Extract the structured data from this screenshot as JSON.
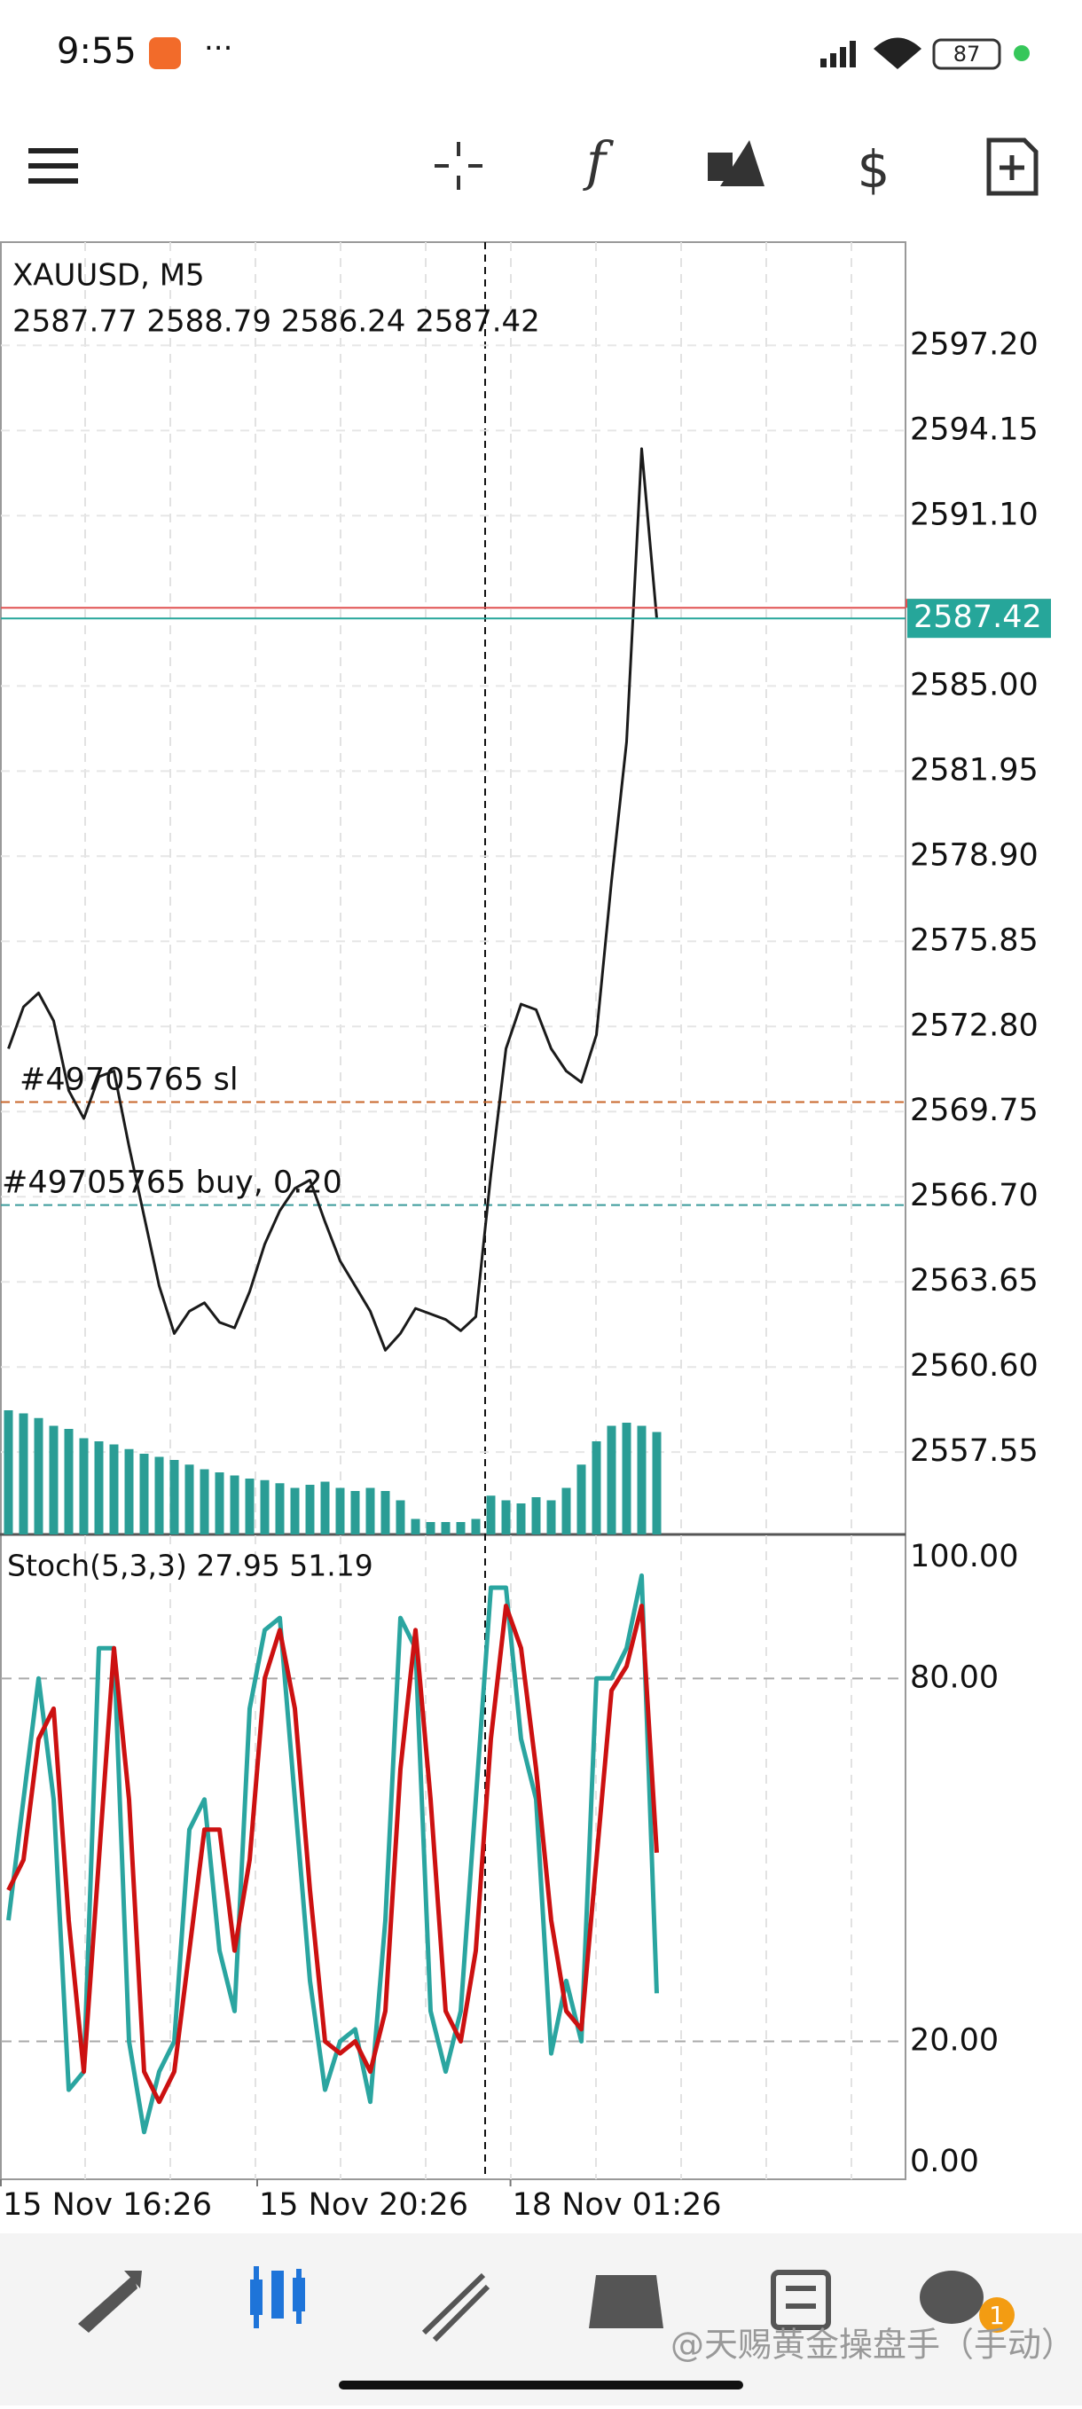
{
  "status_bar": {
    "time": "9:55",
    "battery": "87"
  },
  "chart": {
    "symbol": "XAUUSD, M5",
    "ohlc": "2587.77 2588.79 2586.24 2587.42",
    "ylim": [
      2554.6,
      2600.9
    ],
    "yticks": [
      {
        "value": 2597.2,
        "label": "2597.20"
      },
      {
        "value": 2594.15,
        "label": "2594.15"
      },
      {
        "value": 2591.1,
        "label": "2591.10"
      },
      {
        "value": 2585,
        "label": "2585.00"
      },
      {
        "value": 2581.95,
        "label": "2581.95"
      },
      {
        "value": 2578.9,
        "label": "2578.90"
      },
      {
        "value": 2575.85,
        "label": "2575.85"
      },
      {
        "value": 2572.8,
        "label": "2572.80"
      },
      {
        "value": 2569.75,
        "label": "2569.75"
      },
      {
        "value": 2566.7,
        "label": "2566.70"
      },
      {
        "value": 2563.65,
        "label": "2563.65"
      },
      {
        "value": 2560.6,
        "label": "2560.60"
      },
      {
        "value": 2557.55,
        "label": "2557.55"
      }
    ],
    "xlim": [
      0,
      60
    ],
    "xticks": [
      {
        "value": 0,
        "label": "15 Nov 16:26"
      },
      {
        "value": 17,
        "label": "15 Nov 20:26"
      },
      {
        "value": 33.8,
        "label": "18 Nov 01:26"
      }
    ],
    "x": [
      0.5,
      1.5,
      2.5,
      3.5,
      4.5,
      5.5,
      6.5,
      7.5,
      8.5,
      9.5,
      10.5,
      11.5,
      12.5,
      13.5,
      14.5,
      15.5,
      16.5,
      17.5,
      18.5,
      19.5,
      20.5,
      21.5,
      22.5,
      23.5,
      24.5,
      25.5,
      26.5,
      27.5,
      28.5,
      29.5,
      30.5,
      31.5,
      32.5,
      33.5,
      34.5,
      35.5,
      36.5,
      37.5,
      38.5,
      39.5,
      40.5,
      41.5,
      42.5,
      43.5
    ],
    "close": [
      2572.0,
      2573.5,
      2574.0,
      2573.0,
      2570.5,
      2569.5,
      2571.0,
      2571.2,
      2568.5,
      2566.0,
      2563.5,
      2561.8,
      2562.6,
      2562.9,
      2562.2,
      2562.0,
      2563.3,
      2565.0,
      2566.2,
      2567.0,
      2567.3,
      2565.8,
      2564.4,
      2563.5,
      2562.6,
      2561.2,
      2561.8,
      2562.7,
      2562.5,
      2562.3,
      2561.9,
      2562.4,
      2567.5,
      2572.0,
      2573.6,
      2573.4,
      2572.0,
      2571.2,
      2570.8,
      2572.5,
      2578.0,
      2583.0,
      2593.5,
      2587.42
    ],
    "close_color": "#1a1a1a",
    "volume": [
      80,
      78,
      75,
      70,
      68,
      62,
      60,
      58,
      55,
      52,
      50,
      48,
      45,
      42,
      40,
      38,
      36,
      35,
      33,
      30,
      32,
      34,
      30,
      28,
      30,
      28,
      22,
      10,
      8,
      8,
      8,
      10,
      25,
      22,
      20,
      24,
      22,
      30,
      45,
      60,
      70,
      72,
      70,
      66
    ],
    "volume_color": "#2a9d95",
    "last_price": 2587.42,
    "last_color": "#26a69a",
    "ask": 2587.8,
    "ask_color": "#e05050",
    "orders": [
      {
        "label": "#49705765 sl",
        "value": 2570.09,
        "color": "#c8662a"
      },
      {
        "label": "#49705765 buy, 0.20",
        "value": 2566.4,
        "color": "#3a9a9a"
      }
    ]
  },
  "stoch": {
    "title": "Stoch(5,3,3) 27.95 51.19",
    "ylim": [
      -2.8,
      103.8
    ],
    "yticks": [
      {
        "value": 100,
        "label": "100.00"
      },
      {
        "value": 80,
        "label": "80.00"
      },
      {
        "value": 20,
        "label": "20.00"
      },
      {
        "value": 0,
        "label": "0.00"
      }
    ],
    "k": [
      40,
      60,
      80,
      60,
      12,
      15,
      85,
      85,
      20,
      5,
      15,
      20,
      55,
      60,
      35,
      25,
      75,
      88,
      90,
      60,
      30,
      12,
      20,
      22,
      10,
      40,
      90,
      85,
      25,
      15,
      25,
      60,
      95,
      95,
      70,
      60,
      18,
      30,
      20,
      80,
      80,
      85,
      97,
      27.95
    ],
    "d": [
      45,
      50,
      70,
      75,
      40,
      15,
      50,
      85,
      60,
      15,
      10,
      15,
      35,
      55,
      55,
      35,
      50,
      80,
      88,
      75,
      45,
      20,
      18,
      20,
      15,
      25,
      65,
      88,
      60,
      25,
      20,
      35,
      70,
      92,
      85,
      65,
      40,
      25,
      22,
      50,
      78,
      82,
      92,
      51.19
    ],
    "k_color": "#2aa5a0",
    "d_color": "#cc1111"
  },
  "footer": {
    "watermark": "@天赐黄金操盘手（手动）",
    "badge": "1"
  }
}
